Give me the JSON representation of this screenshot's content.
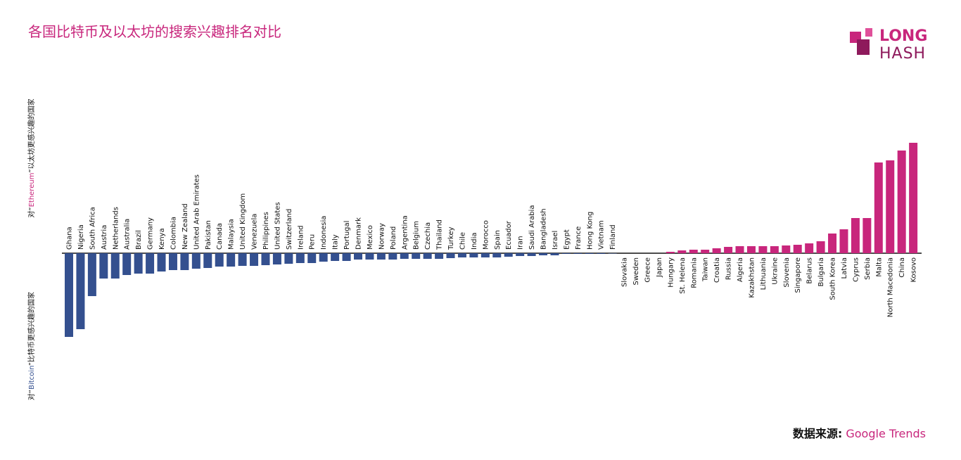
{
  "chart_data": {
    "type": "bar",
    "title": "各国比特币及以太坊的搜索兴趣排名对比",
    "logo": {
      "top": "LONG",
      "bottom": "HASH"
    },
    "ylabel_top": {
      "prefix": "对“",
      "keyword": "Ethereum",
      "suffix": "”以太坊更感兴趣的国家"
    },
    "ylabel_bottom": {
      "prefix": "对“",
      "keyword": "Bitcoin",
      "suffix": "”比特币更感兴趣的国家"
    },
    "source": {
      "label": "数据来源:",
      "name": "Google Trends"
    },
    "categories": [
      "Ghana",
      "Nigeria",
      "South Africa",
      "Austria",
      "Netherlands",
      "Australia",
      "Brazil",
      "Germany",
      "Kenya",
      "Colombia",
      "New Zealand",
      "United Arab Emirates",
      "Pakistan",
      "Canada",
      "Malaysia",
      "United Kingdom",
      "Venezuela",
      "Philippines",
      "United States",
      "Switzerland",
      "Ireland",
      "Peru",
      "Indonesia",
      "Italy",
      "Portugal",
      "Denmark",
      "Mexico",
      "Norway",
      "Poland",
      "Argentina",
      "Belgium",
      "Czechia",
      "Thailand",
      "Turkey",
      "Chile",
      "India",
      "Morocco",
      "Spain",
      "Ecuador",
      "Iran",
      "Saudi Arabia",
      "Bangladesh",
      "Israel",
      "Egypt",
      "France",
      "Hong Kong",
      "Vietnam",
      "Finland",
      "Slovakia",
      "Sweden",
      "Greece",
      "Japan",
      "Hungary",
      "St. Helena",
      "Romania",
      "Taiwan",
      "Croatia",
      "Russia",
      "Algeria",
      "Kazakhstan",
      "Lithuania",
      "Ukraine",
      "Slovenia",
      "Singapore",
      "Belarus",
      "Bulgaria",
      "South Korea",
      "Latvia",
      "Cyprus",
      "Serbia",
      "Malta",
      "North Macedonia",
      "China",
      "Kosovo"
    ],
    "values": [
      -119,
      -108,
      -61,
      -36,
      -36,
      -31,
      -29,
      -29,
      -26,
      -24,
      -24,
      -22,
      -21,
      -19,
      -19,
      -18,
      -18,
      -17,
      -16,
      -15,
      -14,
      -14,
      -12,
      -11,
      -11,
      -9,
      -9,
      -9,
      -9,
      -8,
      -8,
      -8,
      -8,
      -7,
      -6,
      -6,
      -6,
      -6,
      -5,
      -4,
      -4,
      -3,
      -3,
      -1,
      -1,
      -1,
      -1,
      -0.5,
      0,
      0,
      0,
      0,
      2,
      4,
      5,
      5,
      7,
      9,
      10,
      10,
      10,
      10,
      11,
      12,
      14,
      17,
      28,
      34,
      50,
      50,
      129,
      132,
      146,
      157
    ],
    "negative_color": "#34508f",
    "positive_color": "#c8267c",
    "ylim": [
      -200,
      200
    ]
  }
}
